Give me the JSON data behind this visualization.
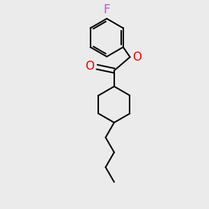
{
  "background_color": "#ebebeb",
  "bond_color": "#000000",
  "F_color": "#cc44cc",
  "O_color": "#ee0000",
  "line_width": 1.5,
  "font_size_atoms": 12,
  "figsize": [
    3.0,
    3.0
  ],
  "dpi": 100,
  "xlim": [
    -1.3,
    1.3
  ],
  "ylim": [
    -2.6,
    1.8
  ]
}
